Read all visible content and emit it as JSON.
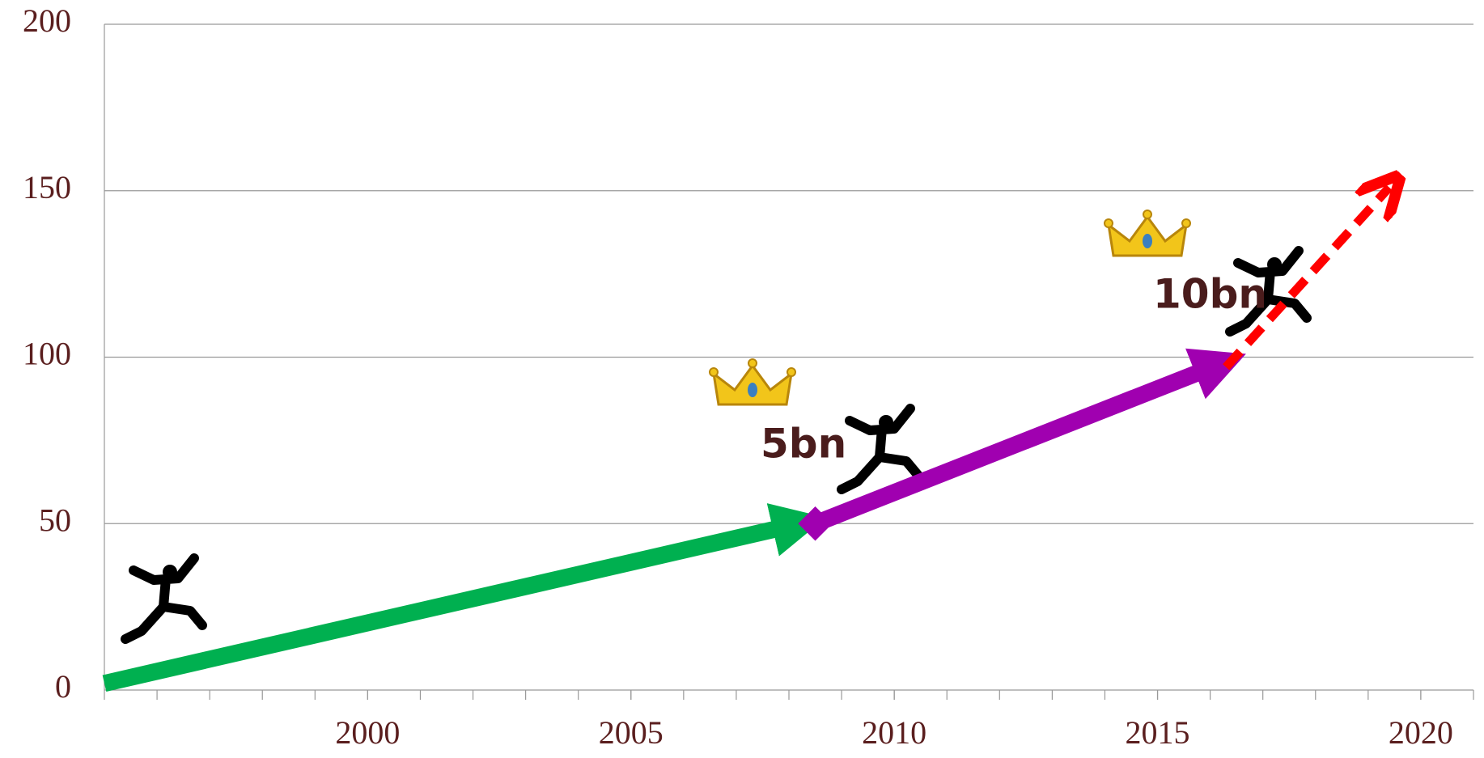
{
  "chart_data": {
    "type": "line",
    "xlim": [
      1995,
      2021
    ],
    "xticks": [
      2000,
      2005,
      2010,
      2015,
      2020
    ],
    "ylim": [
      0,
      200
    ],
    "yticks": [
      0,
      50,
      100,
      150,
      200
    ],
    "grid": true,
    "series": [
      {
        "color": "#00b050",
        "x": [
          1995,
          2008.2
        ],
        "values": [
          2,
          50
        ]
      },
      {
        "color": "#a000b0",
        "x": [
          2008.5,
          2016.2
        ],
        "values": [
          50,
          98
        ]
      },
      {
        "color": "#ff0000",
        "x": [
          2016.3,
          2019.4
        ],
        "values": [
          97,
          151
        ],
        "dashed": true
      }
    ],
    "annotations": [
      "5bn",
      "10bn"
    ]
  }
}
